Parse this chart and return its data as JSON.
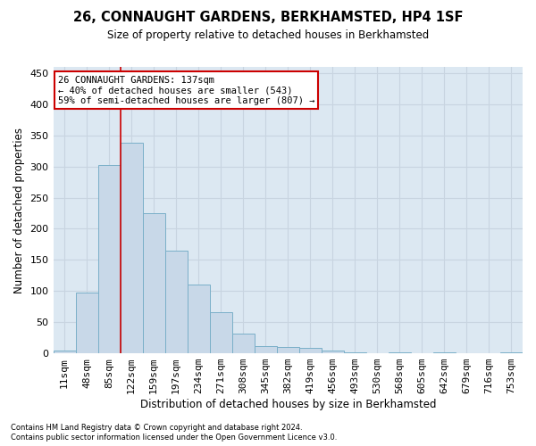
{
  "title": "26, CONNAUGHT GARDENS, BERKHAMSTED, HP4 1SF",
  "subtitle": "Size of property relative to detached houses in Berkhamsted",
  "xlabel": "Distribution of detached houses by size in Berkhamsted",
  "ylabel": "Number of detached properties",
  "footnote1": "Contains HM Land Registry data © Crown copyright and database right 2024.",
  "footnote2": "Contains public sector information licensed under the Open Government Licence v3.0.",
  "bar_labels": [
    "11sqm",
    "48sqm",
    "85sqm",
    "122sqm",
    "159sqm",
    "197sqm",
    "234sqm",
    "271sqm",
    "308sqm",
    "345sqm",
    "382sqm",
    "419sqm",
    "456sqm",
    "493sqm",
    "530sqm",
    "568sqm",
    "605sqm",
    "642sqm",
    "679sqm",
    "716sqm",
    "753sqm"
  ],
  "bar_values": [
    4,
    97,
    303,
    338,
    225,
    165,
    110,
    66,
    32,
    11,
    10,
    8,
    5,
    1,
    0,
    2,
    0,
    1,
    0,
    0,
    1
  ],
  "bar_color": "#c8d8e8",
  "bar_edge_color": "#7aafc8",
  "grid_color": "#c8d4e0",
  "background_color": "#dce8f2",
  "vline_x": 2.5,
  "vline_color": "#cc0000",
  "annotation_text": "26 CONNAUGHT GARDENS: 137sqm\n← 40% of detached houses are smaller (543)\n59% of semi-detached houses are larger (807) →",
  "annotation_box_color": "#ffffff",
  "annotation_box_edge": "#cc0000",
  "ylim": [
    0,
    460
  ],
  "yticks": [
    0,
    50,
    100,
    150,
    200,
    250,
    300,
    350,
    400,
    450
  ]
}
